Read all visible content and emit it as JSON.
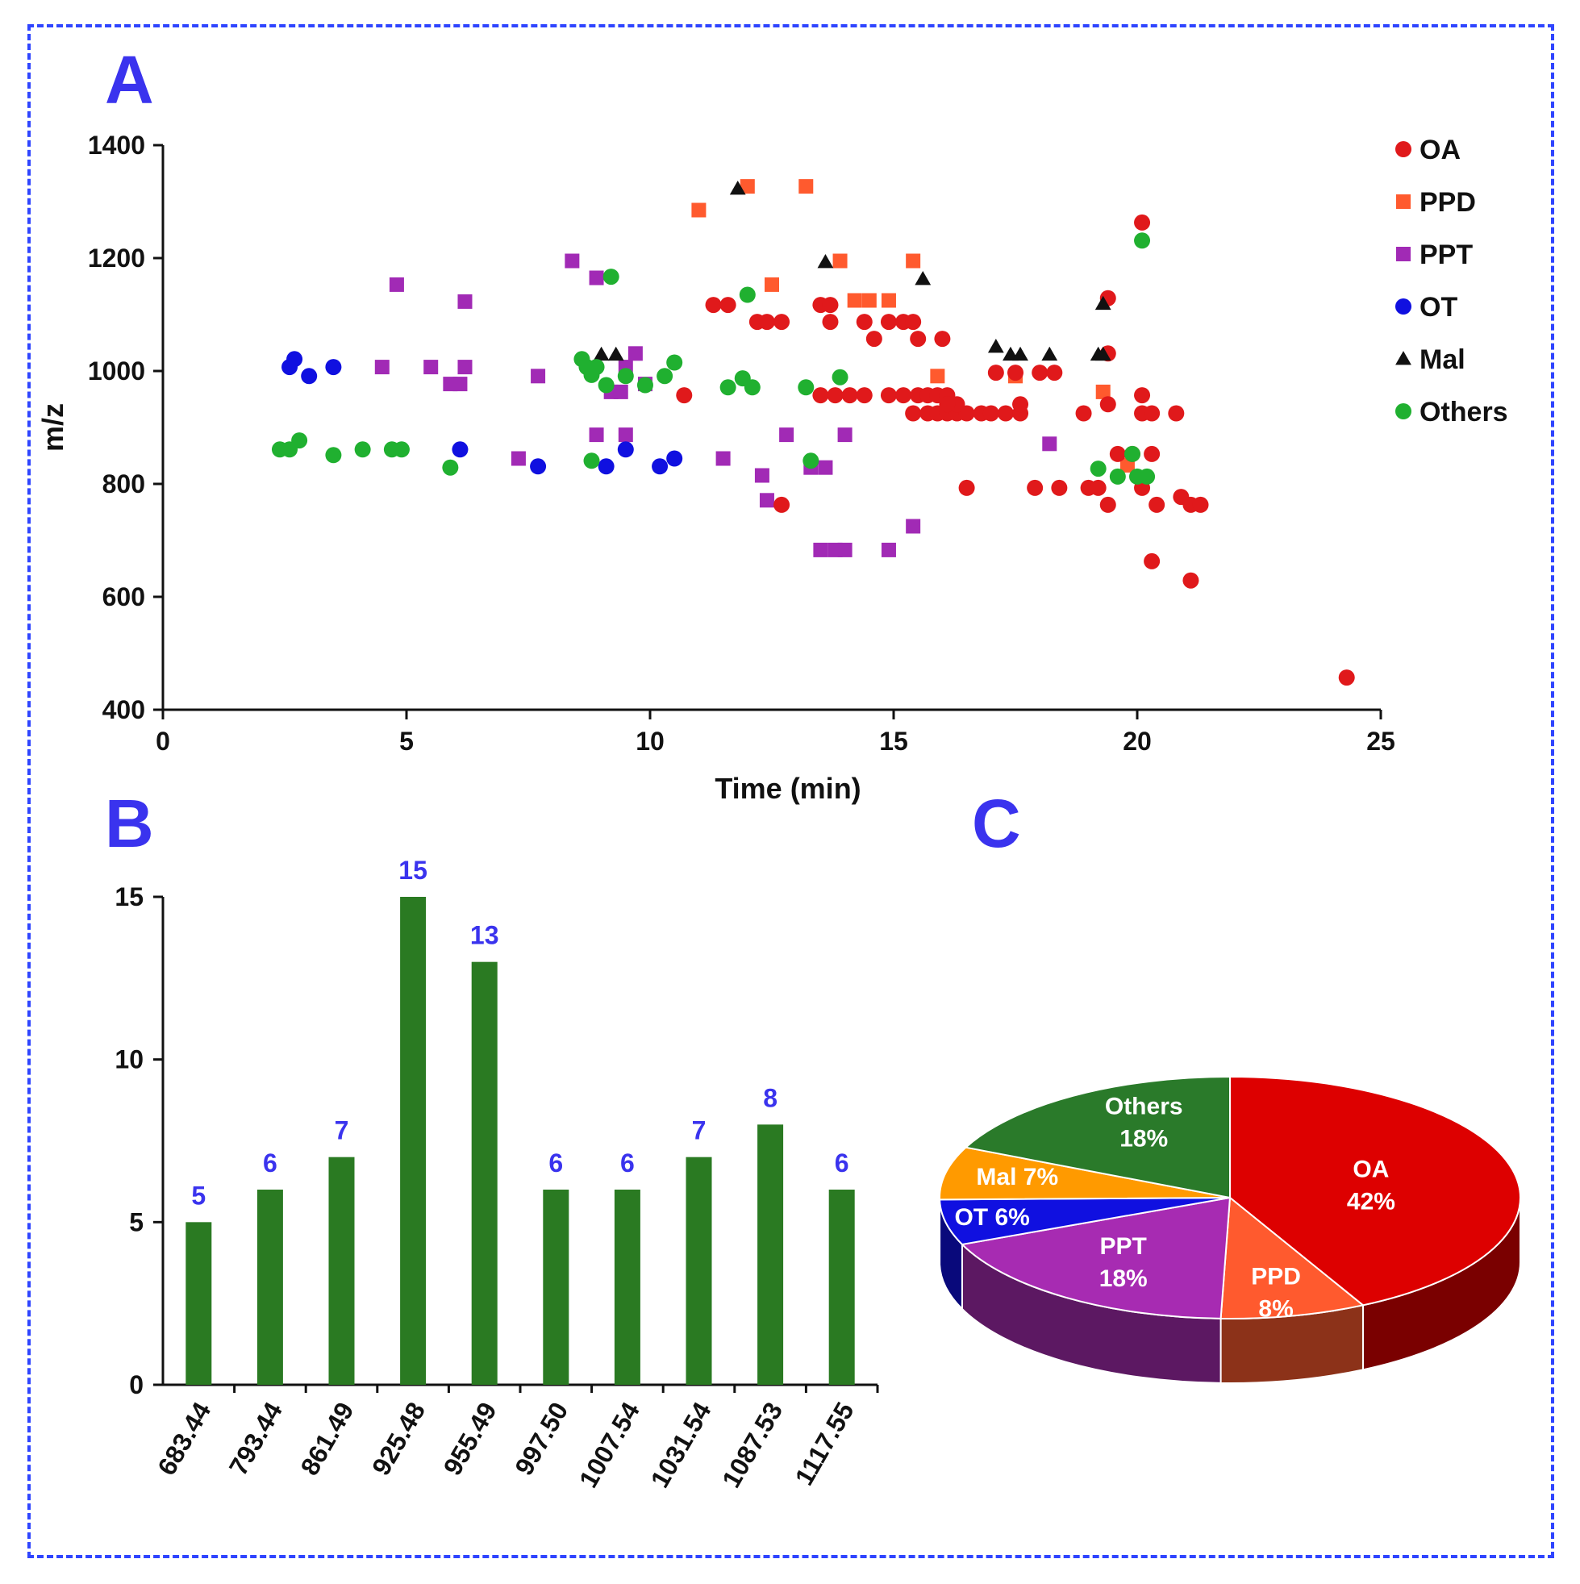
{
  "chart_data": [
    {
      "type": "scatter",
      "panel_label": "A",
      "xlabel": "Time (min)",
      "ylabel": "m/z",
      "xlim": [
        0,
        25
      ],
      "ylim": [
        400,
        1400
      ],
      "xticks": [
        0,
        5,
        10,
        15,
        20,
        25
      ],
      "yticks": [
        400,
        600,
        800,
        1000,
        1200,
        1400
      ],
      "legend_position": "right",
      "series": [
        {
          "name": "OA",
          "color": "#e0191b",
          "marker": "circle",
          "points": [
            [
              10.7,
              957
            ],
            [
              11.3,
              1117
            ],
            [
              11.6,
              1117
            ],
            [
              12.2,
              1087
            ],
            [
              12.4,
              1087
            ],
            [
              12.7,
              1087
            ],
            [
              12.7,
              763
            ],
            [
              13.5,
              1117
            ],
            [
              13.7,
              1117
            ],
            [
              13.7,
              1087
            ],
            [
              13.5,
              957
            ],
            [
              13.8,
              957
            ],
            [
              14.1,
              957
            ],
            [
              14.4,
              957
            ],
            [
              14.4,
              1087
            ],
            [
              14.6,
              1057
            ],
            [
              14.9,
              1087
            ],
            [
              15.2,
              1087
            ],
            [
              15.4,
              1087
            ],
            [
              15.5,
              1057
            ],
            [
              14.9,
              957
            ],
            [
              15.2,
              957
            ],
            [
              15.5,
              957
            ],
            [
              15.7,
              957
            ],
            [
              15.9,
              957
            ],
            [
              16.1,
              957
            ],
            [
              15.4,
              925
            ],
            [
              15.7,
              925
            ],
            [
              15.9,
              925
            ],
            [
              16.1,
              925
            ],
            [
              16.3,
              925
            ],
            [
              16.5,
              925
            ],
            [
              16.8,
              925
            ],
            [
              17.0,
              925
            ],
            [
              17.3,
              925
            ],
            [
              17.6,
              925
            ],
            [
              16.0,
              1057
            ],
            [
              16.3,
              941
            ],
            [
              16.1,
              941
            ],
            [
              16.5,
              793
            ],
            [
              17.1,
              997
            ],
            [
              17.5,
              997
            ],
            [
              17.6,
              941
            ],
            [
              17.9,
              793
            ],
            [
              18.0,
              997
            ],
            [
              18.3,
              997
            ],
            [
              18.4,
              793
            ],
            [
              18.9,
              925
            ],
            [
              19.0,
              793
            ],
            [
              19.2,
              793
            ],
            [
              19.4,
              1129
            ],
            [
              19.4,
              1031
            ],
            [
              19.4,
              941
            ],
            [
              19.4,
              763
            ],
            [
              19.6,
              853
            ],
            [
              19.9,
              853
            ],
            [
              20.1,
              1263
            ],
            [
              20.1,
              957
            ],
            [
              20.1,
              925
            ],
            [
              20.3,
              925
            ],
            [
              20.1,
              793
            ],
            [
              20.4,
              763
            ],
            [
              20.3,
              853
            ],
            [
              20.3,
              663
            ],
            [
              20.8,
              925
            ],
            [
              20.9,
              777
            ],
            [
              21.1,
              763
            ],
            [
              21.3,
              763
            ],
            [
              21.1,
              629
            ],
            [
              24.3,
              457
            ]
          ]
        },
        {
          "name": "PPD",
          "color": "#ff5a2e",
          "marker": "square",
          "points": [
            [
              11.0,
              1285
            ],
            [
              12.0,
              1327
            ],
            [
              13.2,
              1327
            ],
            [
              12.5,
              1153
            ],
            [
              13.9,
              1195
            ],
            [
              15.4,
              1195
            ],
            [
              14.2,
              1125
            ],
            [
              14.5,
              1125
            ],
            [
              14.9,
              1125
            ],
            [
              15.9,
              991
            ],
            [
              17.5,
              991
            ],
            [
              19.3,
              963
            ],
            [
              19.8,
              833
            ]
          ]
        },
        {
          "name": "PPT",
          "color": "#a12ab5",
          "marker": "square",
          "points": [
            [
              4.8,
              1153
            ],
            [
              4.5,
              1007
            ],
            [
              5.5,
              1007
            ],
            [
              5.9,
              977
            ],
            [
              6.1,
              977
            ],
            [
              6.2,
              1007
            ],
            [
              6.2,
              1123
            ],
            [
              7.3,
              845
            ],
            [
              7.7,
              991
            ],
            [
              8.4,
              1195
            ],
            [
              8.9,
              1165
            ],
            [
              8.9,
              887
            ],
            [
              9.2,
              963
            ],
            [
              9.4,
              963
            ],
            [
              9.5,
              1007
            ],
            [
              9.5,
              887
            ],
            [
              9.7,
              1031
            ],
            [
              9.9,
              977
            ],
            [
              11.5,
              845
            ],
            [
              12.3,
              815
            ],
            [
              12.4,
              771
            ],
            [
              12.8,
              887
            ],
            [
              13.3,
              829
            ],
            [
              13.6,
              829
            ],
            [
              13.5,
              683
            ],
            [
              13.8,
              683
            ],
            [
              14.0,
              683
            ],
            [
              14.0,
              887
            ],
            [
              14.9,
              683
            ],
            [
              15.4,
              725
            ],
            [
              18.2,
              871
            ]
          ]
        },
        {
          "name": "OT",
          "color": "#1010e0",
          "marker": "circle",
          "points": [
            [
              2.6,
              1007
            ],
            [
              2.7,
              1021
            ],
            [
              3.0,
              991
            ],
            [
              3.5,
              1007
            ],
            [
              6.1,
              861
            ],
            [
              7.7,
              831
            ],
            [
              9.1,
              831
            ],
            [
              9.5,
              861
            ],
            [
              10.2,
              831
            ],
            [
              10.5,
              845
            ]
          ]
        },
        {
          "name": "Mal",
          "color": "#111111",
          "marker": "triangle",
          "points": [
            [
              11.8,
              1323
            ],
            [
              9.0,
              1029
            ],
            [
              9.3,
              1029
            ],
            [
              13.6,
              1193
            ],
            [
              15.6,
              1163
            ],
            [
              17.1,
              1043
            ],
            [
              17.4,
              1029
            ],
            [
              17.6,
              1029
            ],
            [
              18.2,
              1029
            ],
            [
              19.2,
              1029
            ],
            [
              19.3,
              1029
            ],
            [
              19.3,
              1119
            ]
          ]
        },
        {
          "name": "Others",
          "color": "#20b030",
          "marker": "circle",
          "points": [
            [
              2.4,
              861
            ],
            [
              2.6,
              861
            ],
            [
              2.8,
              877
            ],
            [
              3.5,
              851
            ],
            [
              4.1,
              861
            ],
            [
              4.7,
              861
            ],
            [
              4.9,
              861
            ],
            [
              5.9,
              829
            ],
            [
              8.6,
              1021
            ],
            [
              8.7,
              1007
            ],
            [
              8.8,
              993
            ],
            [
              8.9,
              1007
            ],
            [
              9.2,
              1167
            ],
            [
              9.1,
              975
            ],
            [
              9.5,
              991
            ],
            [
              9.9,
              975
            ],
            [
              10.3,
              991
            ],
            [
              10.5,
              1015
            ],
            [
              8.8,
              841
            ],
            [
              11.6,
              971
            ],
            [
              11.9,
              987
            ],
            [
              12.1,
              971
            ],
            [
              12.0,
              1135
            ],
            [
              13.2,
              971
            ],
            [
              13.3,
              841
            ],
            [
              13.9,
              989
            ],
            [
              19.2,
              827
            ],
            [
              19.6,
              813
            ],
            [
              19.9,
              853
            ],
            [
              20.0,
              813
            ],
            [
              20.2,
              813
            ],
            [
              20.1,
              1231
            ]
          ]
        }
      ]
    },
    {
      "type": "bar",
      "panel_label": "B",
      "categories": [
        "683.44",
        "793.44",
        "861.49",
        "925.48",
        "955.49",
        "997.50",
        "1007.54",
        "1031.54",
        "1087.53",
        "1117.55"
      ],
      "values": [
        5,
        6,
        7,
        15,
        13,
        6,
        6,
        7,
        8,
        6
      ],
      "value_labels": [
        "5",
        "6",
        "7",
        "15",
        "13",
        "6",
        "6",
        "7",
        "8",
        "6"
      ],
      "ylim": [
        0,
        15
      ],
      "yticks": [
        0,
        5,
        10,
        15
      ],
      "bar_color": "#2a7a22",
      "label_color": "#3a33ee"
    },
    {
      "type": "pie",
      "panel_label": "C",
      "slices": [
        {
          "name": "OA",
          "value": 42,
          "label": "42%",
          "color": "#dd0000"
        },
        {
          "name": "PPD",
          "value": 8,
          "label": "8%",
          "color": "#ff5a2e"
        },
        {
          "name": "PPT",
          "value": 18,
          "label": "18%",
          "color": "#a72bb2"
        },
        {
          "name": "OT",
          "value": 6,
          "label": "OT 6%",
          "color": "#1010e0"
        },
        {
          "name": "Mal",
          "value": 7,
          "label": "Mal 7%",
          "color": "#ff9a00"
        },
        {
          "name": "Others",
          "value": 18,
          "label": "18%",
          "color": "#2a7a2a"
        }
      ]
    }
  ],
  "colors": {
    "frame": "#2f45ff",
    "panel_label": "#3a33ee",
    "axis": "#111111"
  }
}
